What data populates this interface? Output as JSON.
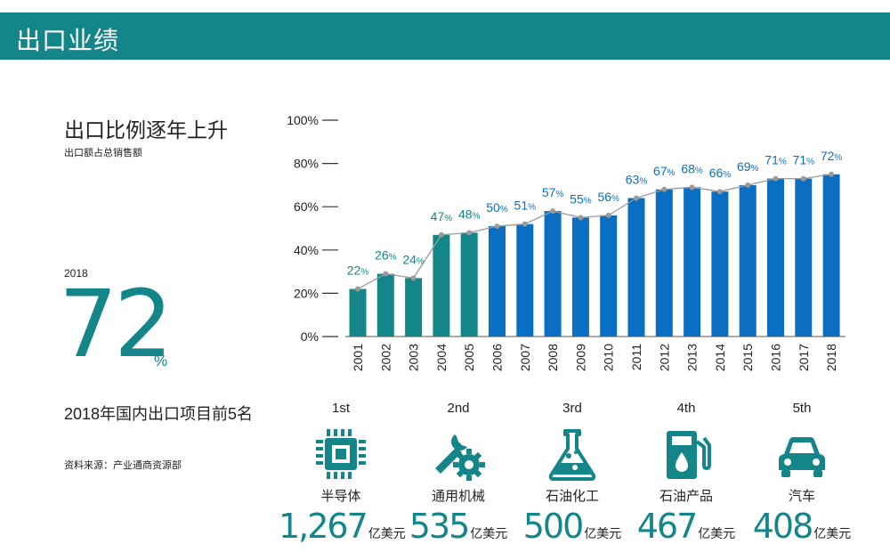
{
  "header": {
    "title": "出口业绩"
  },
  "left": {
    "title": "出口比例逐年上升",
    "subtitle": "出口额占总销售额",
    "year": "2018",
    "big_value": "72",
    "big_unit": "%",
    "rank_title": "2018年国内出口项目前5名",
    "source": "资料来源：产业通商资源部"
  },
  "colors": {
    "teal": "#14868a",
    "blue": "#0a6fc2",
    "line": "#9a9a9a",
    "dot": "#9a9a9a"
  },
  "chart_data": {
    "type": "bar",
    "categories": [
      "2001",
      "2002",
      "2003",
      "2004",
      "2005",
      "2006",
      "2007",
      "2008",
      "2009",
      "2010",
      "2011",
      "2012",
      "2013",
      "2014",
      "2015",
      "2016",
      "2017",
      "2018"
    ],
    "values": [
      22,
      26,
      24,
      47,
      48,
      50,
      51,
      57,
      55,
      56,
      63,
      67,
      68,
      66,
      69,
      71,
      71,
      72
    ],
    "bar_heights": [
      22,
      29,
      27,
      47,
      48,
      51,
      52,
      58,
      55,
      56,
      64,
      68,
      69,
      67,
      70,
      73,
      73,
      75
    ],
    "value_unit": "%",
    "color_groups": [
      "teal",
      "teal",
      "teal",
      "teal",
      "teal",
      "blue",
      "blue",
      "blue",
      "blue",
      "blue",
      "blue",
      "blue",
      "blue",
      "blue",
      "blue",
      "blue",
      "blue",
      "blue"
    ],
    "yticks": [
      "0%",
      "20%",
      "40%",
      "60%",
      "80%",
      "100%"
    ],
    "ylim": [
      0,
      100
    ],
    "line_overlay": true,
    "title": "",
    "xlabel": "",
    "ylabel": ""
  },
  "rankings": [
    {
      "rank": "1st",
      "name": "半导体",
      "value": "1,267",
      "unit": "亿美元",
      "icon": "chip-icon"
    },
    {
      "rank": "2nd",
      "name": "通用机械",
      "value": "535",
      "unit": "亿美元",
      "icon": "wrench-gear-icon"
    },
    {
      "rank": "3rd",
      "name": "石油化工",
      "value": "500",
      "unit": "亿美元",
      "icon": "flask-icon"
    },
    {
      "rank": "4th",
      "name": "石油产品",
      "value": "467",
      "unit": "亿美元",
      "icon": "fuel-pump-icon"
    },
    {
      "rank": "5th",
      "name": "汽车",
      "value": "408",
      "unit": "亿美元",
      "icon": "car-icon"
    }
  ]
}
